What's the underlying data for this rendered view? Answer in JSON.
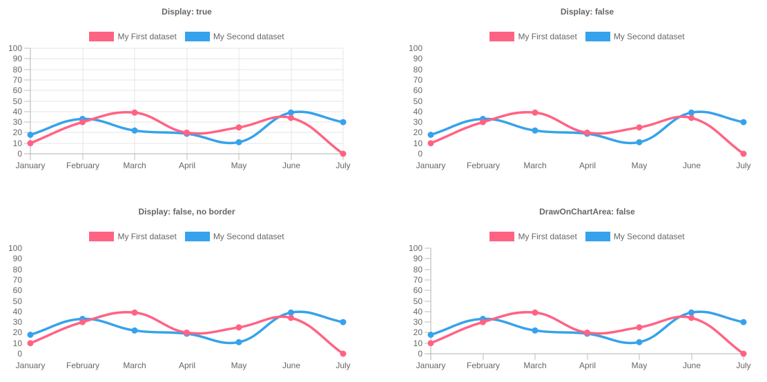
{
  "page": {
    "background": "#ffffff"
  },
  "colors": {
    "first_dataset": "#ff6384",
    "second_dataset": "#36a2eb",
    "grid_line": "#e5e5e5",
    "axis_border": "#b1b1b1",
    "tick_mark": "#bdbdbd",
    "label_text": "#666666",
    "title_text": "#666666"
  },
  "chart_data": [
    {
      "type": "line",
      "title": "Display: true",
      "categories": [
        "January",
        "February",
        "March",
        "April",
        "May",
        "June",
        "July"
      ],
      "series": [
        {
          "name": "My First dataset",
          "color": "#ff6384",
          "values": [
            10,
            30,
            39,
            20,
            25,
            34,
            0
          ]
        },
        {
          "name": "My Second dataset",
          "color": "#36a2eb",
          "values": [
            18,
            33,
            22,
            19,
            11,
            39,
            30
          ]
        }
      ],
      "ylim": [
        0,
        100
      ],
      "y_ticks": [
        0,
        10,
        20,
        30,
        40,
        50,
        60,
        70,
        80,
        90,
        100
      ],
      "grid": {
        "display": true,
        "draw_on_chart_area": true,
        "draw_border": true,
        "tick_marks": true
      },
      "legend_position": "top",
      "line_tension": 0.4
    },
    {
      "type": "line",
      "title": "Display: false",
      "categories": [
        "January",
        "February",
        "March",
        "April",
        "May",
        "June",
        "July"
      ],
      "series": [
        {
          "name": "My First dataset",
          "color": "#ff6384",
          "values": [
            10,
            30,
            39,
            20,
            25,
            34,
            0
          ]
        },
        {
          "name": "My Second dataset",
          "color": "#36a2eb",
          "values": [
            18,
            33,
            22,
            19,
            11,
            39,
            30
          ]
        }
      ],
      "ylim": [
        0,
        100
      ],
      "y_ticks": [
        0,
        10,
        20,
        30,
        40,
        50,
        60,
        70,
        80,
        90,
        100
      ],
      "grid": {
        "display": false,
        "draw_on_chart_area": false,
        "draw_border": false,
        "tick_marks": false
      },
      "legend_position": "top",
      "line_tension": 0.4
    },
    {
      "type": "line",
      "title": "Display: false, no border",
      "categories": [
        "January",
        "February",
        "March",
        "April",
        "May",
        "June",
        "July"
      ],
      "series": [
        {
          "name": "My First dataset",
          "color": "#ff6384",
          "values": [
            10,
            30,
            39,
            20,
            25,
            34,
            0
          ]
        },
        {
          "name": "My Second dataset",
          "color": "#36a2eb",
          "values": [
            18,
            33,
            22,
            19,
            11,
            39,
            30
          ]
        }
      ],
      "ylim": [
        0,
        100
      ],
      "y_ticks": [
        0,
        10,
        20,
        30,
        40,
        50,
        60,
        70,
        80,
        90,
        100
      ],
      "grid": {
        "display": false,
        "draw_on_chart_area": false,
        "draw_border": false,
        "tick_marks": false
      },
      "legend_position": "top",
      "line_tension": 0.4
    },
    {
      "type": "line",
      "title": "DrawOnChartArea: false",
      "categories": [
        "January",
        "February",
        "March",
        "April",
        "May",
        "June",
        "July"
      ],
      "series": [
        {
          "name": "My First dataset",
          "color": "#ff6384",
          "values": [
            10,
            30,
            39,
            20,
            25,
            34,
            0
          ]
        },
        {
          "name": "My Second dataset",
          "color": "#36a2eb",
          "values": [
            18,
            33,
            22,
            19,
            11,
            39,
            30
          ]
        }
      ],
      "ylim": [
        0,
        100
      ],
      "y_ticks": [
        0,
        10,
        20,
        30,
        40,
        50,
        60,
        70,
        80,
        90,
        100
      ],
      "grid": {
        "display": true,
        "draw_on_chart_area": false,
        "draw_border": true,
        "tick_marks": true
      },
      "legend_position": "top",
      "line_tension": 0.4
    }
  ]
}
